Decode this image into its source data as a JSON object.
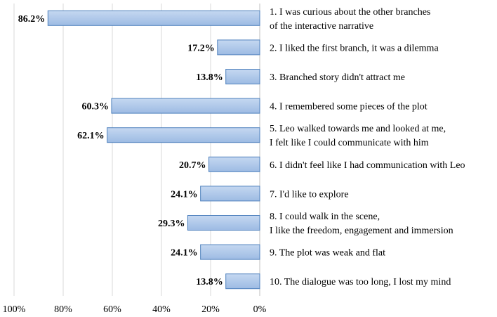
{
  "chart_data": {
    "type": "bar",
    "orientation": "horizontal",
    "direction": "right-to-left",
    "categories": [
      [
        "1. I was curious about the other branches",
        "of the interactive narrative"
      ],
      [
        "2. I liked the first branch, it was a dilemma"
      ],
      [
        "3. Branched story didn't attract me"
      ],
      [
        "4. I remembered some pieces of the plot"
      ],
      [
        "5. Leo walked towards me and looked at me,",
        "I felt like I could communicate with him"
      ],
      [
        "6. I didn't feel like I had communication with Leo"
      ],
      [
        "7. I'd like to explore"
      ],
      [
        "8. I could walk in the scene,",
        "I like the freedom, engagement and immersion"
      ],
      [
        "9. The plot was weak and flat"
      ],
      [
        "10. The dialogue was too long, I lost my mind"
      ]
    ],
    "values": [
      86.2,
      17.2,
      13.8,
      60.3,
      62.1,
      20.7,
      24.1,
      29.3,
      24.1,
      13.8
    ],
    "value_labels": [
      "86.2%",
      "17.2%",
      "13.8%",
      "60.3%",
      "62.1%",
      "20.7%",
      "24.1%",
      "29.3%",
      "24.1%",
      "13.8%"
    ],
    "xlim": [
      0,
      100
    ],
    "x_ticks": [
      100,
      80,
      60,
      40,
      20,
      0
    ],
    "x_tick_labels": [
      "100%",
      "80%",
      "60%",
      "40%",
      "20%",
      "0%"
    ],
    "grid": true,
    "bar_color": "#a9c4eb",
    "bar_edge_color": "#4f81bd"
  }
}
